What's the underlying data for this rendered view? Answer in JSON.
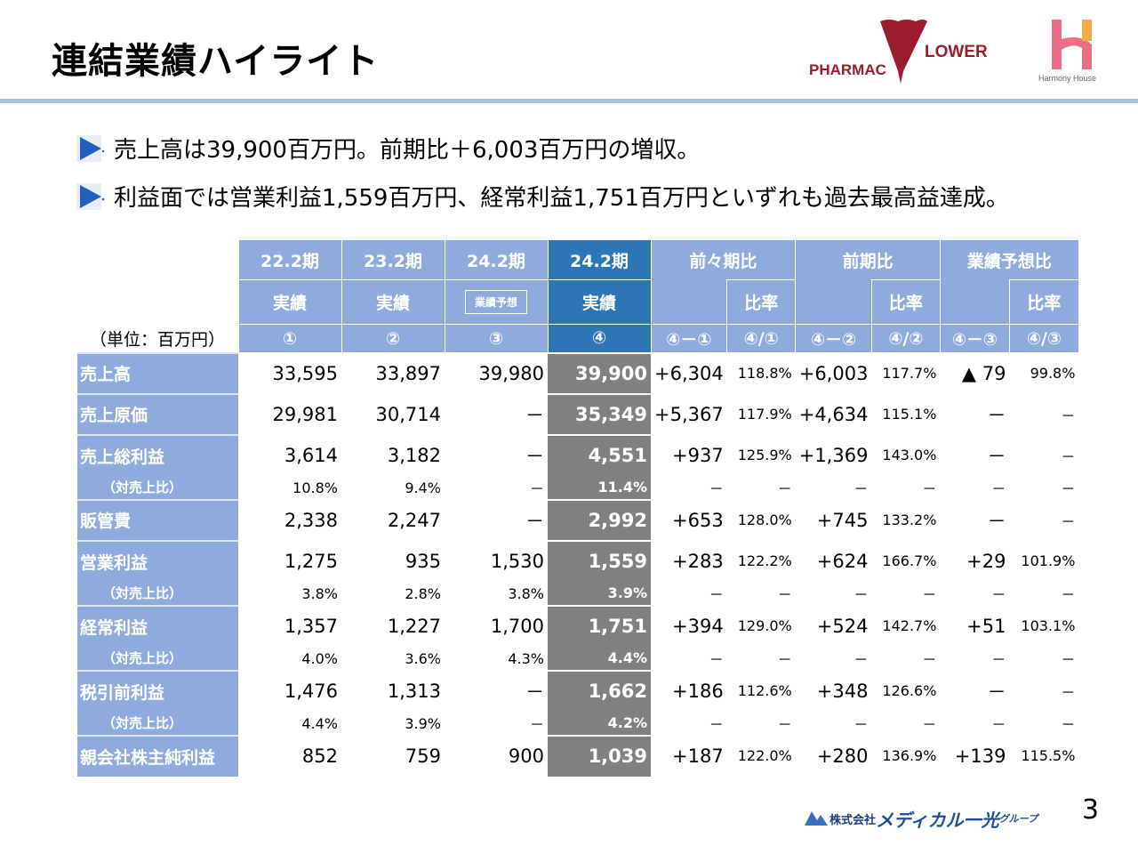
{
  "title": "連結業績ハイライト",
  "logos": {
    "pharmacy": "PHARMAC FLOWER",
    "harmony": "Harmony House",
    "footer_company": "株式会社",
    "footer_brand": "メディカル一光",
    "footer_group": "グループ"
  },
  "bullets": [
    "売上高は39,900百万円。前期比＋6,003百万円の増収。",
    "利益面では営業利益1,559百万円、経常利益1,751百万円といずれも過去最高益達成。"
  ],
  "unit": "（単位：百万円）",
  "header": {
    "periods": [
      {
        "p": "22.2期",
        "k": "実績"
      },
      {
        "p": "23.2期",
        "k": "実績"
      },
      {
        "p": "24.2期",
        "k": "業績予想"
      },
      {
        "p": "24.2期",
        "k": "実績"
      }
    ],
    "groups": [
      "前々期比",
      "前期比",
      "業績予想比"
    ],
    "ratio": "比率",
    "refs": [
      "①",
      "②",
      "③",
      "④",
      "④－①",
      "④/①",
      "④－②",
      "④/②",
      "④－③",
      "④/③"
    ]
  },
  "rows": [
    {
      "label": "売上高",
      "sub": false,
      "v": [
        "33,595",
        "33,897",
        "39,980",
        "39,900",
        "+6,304",
        "118.8%",
        "+6,003",
        "117.7%",
        "▲ 79",
        "99.8%"
      ]
    },
    {
      "label": "売上原価",
      "sub": false,
      "v": [
        "29,981",
        "30,714",
        "－",
        "35,349",
        "+5,367",
        "117.9%",
        "+4,634",
        "115.1%",
        "－",
        "－"
      ]
    },
    {
      "label": "売上総利益",
      "sub": false,
      "v": [
        "3,614",
        "3,182",
        "－",
        "4,551",
        "+937",
        "125.9%",
        "+1,369",
        "143.0%",
        "－",
        "－"
      ]
    },
    {
      "label": "（対売上比）",
      "sub": true,
      "v": [
        "10.8%",
        "9.4%",
        "－",
        "11.4%",
        "－",
        "－",
        "－",
        "－",
        "－",
        "－"
      ]
    },
    {
      "label": "販管費",
      "sub": false,
      "v": [
        "2,338",
        "2,247",
        "－",
        "2,992",
        "+653",
        "128.0%",
        "+745",
        "133.2%",
        "－",
        "－"
      ]
    },
    {
      "label": "営業利益",
      "sub": false,
      "v": [
        "1,275",
        "935",
        "1,530",
        "1,559",
        "+283",
        "122.2%",
        "+624",
        "166.7%",
        "+29",
        "101.9%"
      ]
    },
    {
      "label": "（対売上比）",
      "sub": true,
      "v": [
        "3.8%",
        "2.8%",
        "3.8%",
        "3.9%",
        "－",
        "－",
        "－",
        "－",
        "－",
        "－"
      ]
    },
    {
      "label": "経常利益",
      "sub": false,
      "v": [
        "1,357",
        "1,227",
        "1,700",
        "1,751",
        "+394",
        "129.0%",
        "+524",
        "142.7%",
        "+51",
        "103.1%"
      ]
    },
    {
      "label": "（対売上比）",
      "sub": true,
      "v": [
        "4.0%",
        "3.6%",
        "4.3%",
        "4.4%",
        "－",
        "－",
        "－",
        "－",
        "－",
        "－"
      ]
    },
    {
      "label": "税引前利益",
      "sub": false,
      "v": [
        "1,476",
        "1,313",
        "－",
        "1,662",
        "+186",
        "112.6%",
        "+348",
        "126.6%",
        "－",
        "－"
      ]
    },
    {
      "label": "（対売上比）",
      "sub": true,
      "v": [
        "4.4%",
        "3.9%",
        "－",
        "4.2%",
        "－",
        "－",
        "－",
        "－",
        "－",
        "－"
      ]
    },
    {
      "label": "親会社株主純利益",
      "sub": false,
      "v": [
        "852",
        "759",
        "900",
        "1,039",
        "+187",
        "122.0%",
        "+280",
        "136.9%",
        "+139",
        "115.5%"
      ]
    }
  ],
  "page": "3",
  "colors": {
    "header": "#8faadc",
    "selected": "#2e75b6",
    "actual": "#808080"
  }
}
